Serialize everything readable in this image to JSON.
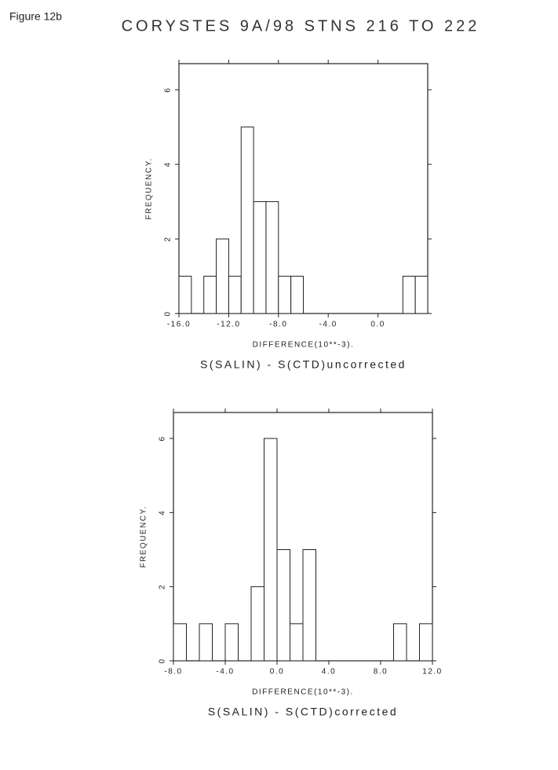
{
  "header": {
    "figure_label": "Figure 12b",
    "title": "CORYSTES 9A/98 STNS 216 TO 222"
  },
  "chart_data": [
    {
      "type": "histogram",
      "ylabel": "FREQUENCY.",
      "xlabel": "DIFFERENCE(10**-3).",
      "subtitle": "S(SALIN) - S(CTD)uncorrected",
      "bins": [
        -16,
        -15,
        -14,
        -13,
        -12,
        -11,
        -10,
        -9,
        -8,
        -7,
        -6,
        -5,
        -4,
        -3,
        -2,
        -1,
        0,
        1,
        2,
        3,
        4
      ],
      "values": [
        1,
        0,
        1,
        2,
        1,
        5,
        3,
        3,
        1,
        1,
        0,
        0,
        0,
        0,
        0,
        0,
        0,
        0,
        1,
        1
      ],
      "color": "#ffffff",
      "xlim": [
        -16,
        4
      ],
      "ylim": [
        0,
        6.7
      ],
      "xticks": [
        {
          "value": -16,
          "label": "-16.0"
        },
        {
          "value": -12,
          "label": "-12.0"
        },
        {
          "value": -8,
          "label": "-8.0"
        },
        {
          "value": -4,
          "label": "-4.0"
        },
        {
          "value": 0,
          "label": "0.0"
        }
      ],
      "yticks": [
        0,
        2,
        4,
        6
      ]
    },
    {
      "type": "histogram",
      "ylabel": "FREQUENCY.",
      "xlabel": "DIFFERENCE(10**-3).",
      "subtitle": "S(SALIN) - S(CTD)corrected",
      "bins": [
        -8,
        -7,
        -6,
        -5,
        -4,
        -3,
        -2,
        -1,
        0,
        1,
        2,
        3,
        4,
        5,
        6,
        7,
        8,
        9,
        10,
        11,
        12
      ],
      "values": [
        1,
        0,
        1,
        0,
        1,
        0,
        2,
        6,
        3,
        1,
        3,
        0,
        0,
        0,
        0,
        0,
        0,
        1,
        0,
        1
      ],
      "color": "#ffffff",
      "xlim": [
        -8,
        12
      ],
      "ylim": [
        0,
        6.7
      ],
      "xticks": [
        {
          "value": -8,
          "label": "-8.0"
        },
        {
          "value": -4,
          "label": "-4.0"
        },
        {
          "value": 0,
          "label": "0.0"
        },
        {
          "value": 4,
          "label": "4.0"
        },
        {
          "value": 8,
          "label": "8.0"
        },
        {
          "value": 12,
          "label": "12.0"
        }
      ],
      "yticks": [
        0,
        2,
        4,
        6
      ]
    }
  ]
}
